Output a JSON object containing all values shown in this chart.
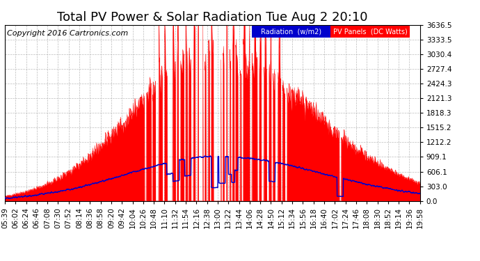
{
  "title": "Total PV Power & Solar Radiation Tue Aug 2 20:10",
  "copyright": "Copyright 2016 Cartronics.com",
  "ylabel_right_values": [
    0.0,
    303.0,
    606.1,
    909.1,
    1212.2,
    1515.2,
    1818.3,
    2121.3,
    2424.3,
    2727.4,
    3030.4,
    3333.5,
    3636.5
  ],
  "ymax": 3636.5,
  "background_color": "#ffffff",
  "plot_bg_color": "#ffffff",
  "grid_color": "#aaaaaa",
  "red_fill_color": "#ff0000",
  "blue_line_color": "#0000cc",
  "legend_radiation_bg": "#0000cc",
  "legend_pv_bg": "#ff0000",
  "legend_radiation_text": "Radiation  (w/m2)",
  "legend_pv_text": "PV Panels  (DC Watts)",
  "title_fontsize": 13,
  "copyright_fontsize": 8,
  "tick_fontsize": 7.5
}
